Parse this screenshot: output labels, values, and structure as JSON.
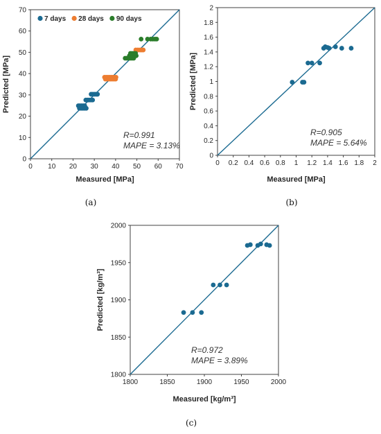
{
  "colors": {
    "d7": "#1b6a91",
    "d28": "#ed7d31",
    "d90": "#2b7d2b",
    "line": "#1b6a91",
    "axis": "#404040"
  },
  "chart_data": [
    {
      "type": "scatter",
      "panel_label": "(a)",
      "xlabel": "Measured [MPa]",
      "ylabel": "Predicted [MPa]",
      "xlim": [
        0,
        70
      ],
      "ylim": [
        0,
        70
      ],
      "xticks": [
        "0",
        "10",
        "20",
        "30",
        "40",
        "50",
        "60",
        "70"
      ],
      "yticks": [
        "0",
        "10",
        "20",
        "30",
        "40",
        "50",
        "60",
        "70"
      ],
      "legend": "top-left",
      "stats": [
        "R=0.991",
        "MAPE = 3.13%"
      ],
      "series": [
        {
          "name": "7 days",
          "color": "#1b6a91",
          "x": [
            22.5,
            23.2,
            24.0,
            24.8,
            25.5,
            23.0,
            23.8,
            24.6,
            25.4,
            26.2,
            26.0,
            26.8,
            27.6,
            28.4,
            29.2,
            28.5,
            29.3,
            30.1,
            30.9,
            31.5
          ],
          "y": [
            24.9,
            24.9,
            24.9,
            24.9,
            24.9,
            23.7,
            23.7,
            23.7,
            23.7,
            23.7,
            27.6,
            27.6,
            27.6,
            27.6,
            27.6,
            30.3,
            30.3,
            30.3,
            30.3,
            30.3
          ]
        },
        {
          "name": "28 days",
          "color": "#ed7d31",
          "x": [
            34.8,
            35.6,
            36.4,
            37.2,
            38.0,
            38.8,
            39.5,
            40.2,
            35.2,
            36.0,
            36.8,
            37.6,
            38.4,
            39.2,
            40.0,
            49.5,
            50.5,
            51.5,
            52.3,
            53.0
          ],
          "y": [
            38.3,
            38.3,
            38.3,
            38.3,
            38.3,
            38.3,
            38.3,
            38.3,
            37.4,
            37.4,
            37.4,
            37.4,
            37.4,
            37.4,
            37.4,
            51.1,
            51.1,
            51.1,
            51.1,
            51.1
          ]
        },
        {
          "name": "90 days",
          "color": "#2b7d2b",
          "x": [
            44.5,
            45.3,
            46.1,
            46.9,
            47.7,
            48.5,
            46.5,
            47.3,
            48.1,
            48.9,
            49.7,
            47.0,
            47.8,
            48.6,
            49.4,
            52.0,
            55.0,
            56.5,
            57.5,
            58.5,
            59.3
          ],
          "y": [
            47.2,
            47.2,
            47.2,
            47.2,
            47.2,
            47.2,
            48.4,
            48.4,
            48.4,
            48.4,
            48.4,
            49.5,
            49.5,
            49.5,
            49.5,
            56.2,
            56.2,
            56.2,
            56.2,
            56.2,
            56.2
          ]
        }
      ]
    },
    {
      "type": "scatter",
      "panel_label": "(b)",
      "xlabel": "Measured [MPa]",
      "ylabel": "Predicted [MPa]",
      "xlim": [
        0,
        2
      ],
      "ylim": [
        0,
        2
      ],
      "xticks": [
        "0",
        "0.2",
        "0.4",
        "0.6",
        "0.8",
        "1",
        "1.2",
        "1.4",
        "1.6",
        "1.8",
        "2"
      ],
      "yticks": [
        "0",
        "0.2",
        "0.4",
        "0.6",
        "0.8",
        "1",
        "1.2",
        "1.4",
        "1.6",
        "1.8",
        "2"
      ],
      "stats": [
        "R=0.905",
        "MAPE = 5.64%"
      ],
      "series": [
        {
          "color": "#1b6a91",
          "x": [
            0.95,
            1.08,
            1.1,
            1.15,
            1.2,
            1.3,
            1.35,
            1.37,
            1.4,
            1.42,
            1.5,
            1.58,
            1.7
          ],
          "y": [
            0.99,
            0.99,
            0.99,
            1.25,
            1.25,
            1.25,
            1.45,
            1.47,
            1.46,
            1.45,
            1.47,
            1.45,
            1.45
          ]
        }
      ]
    },
    {
      "type": "scatter",
      "panel_label": "(c)",
      "xlabel": "Measured [kg/m³]",
      "ylabel": "Predicted [kg/m³]",
      "xlim": [
        1800,
        2000
      ],
      "ylim": [
        1800,
        2000
      ],
      "xticks": [
        "1800",
        "1850",
        "1900",
        "1950",
        "2000"
      ],
      "yticks": [
        "1800",
        "1850",
        "1900",
        "1950",
        "2000"
      ],
      "stats": [
        "R=0.972",
        "MAPE = 3.89%"
      ],
      "series": [
        {
          "color": "#1b6a91",
          "x": [
            1872,
            1884,
            1896,
            1912,
            1921,
            1930,
            1958,
            1962,
            1972,
            1976,
            1984,
            1988
          ],
          "y": [
            1883,
            1883,
            1883,
            1920,
            1920,
            1920,
            1973,
            1974,
            1973,
            1975,
            1974,
            1973
          ]
        }
      ]
    }
  ]
}
